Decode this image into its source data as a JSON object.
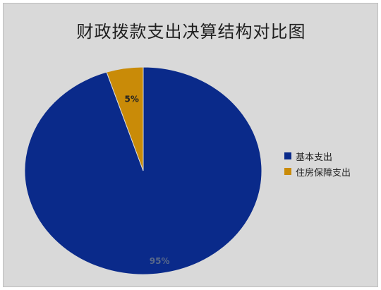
{
  "chart_data": {
    "type": "pie",
    "title": "财政拨款支出决算结构对比图",
    "categories": [
      "基本支出",
      "住房保障支出"
    ],
    "values": [
      95,
      5
    ],
    "data_labels": [
      "95%",
      "5%"
    ],
    "colors": [
      "#0a2a8a",
      "#c98b08"
    ],
    "legend_position": "right"
  }
}
